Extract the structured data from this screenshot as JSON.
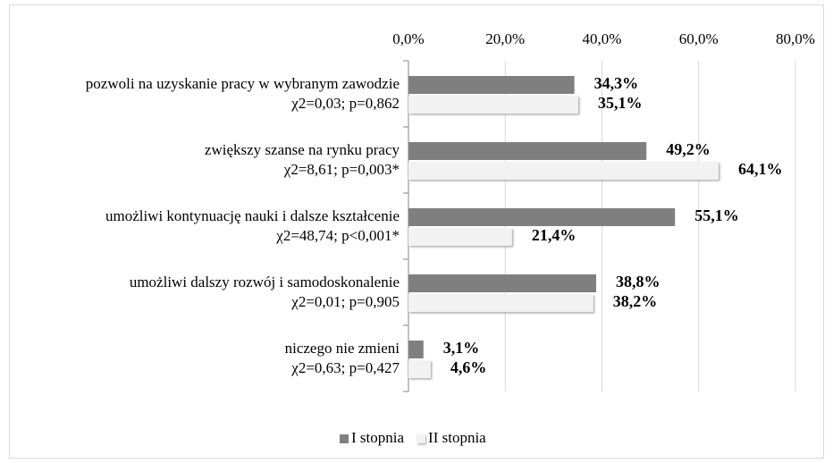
{
  "chart_data": {
    "type": "bar",
    "orientation": "horizontal",
    "categories": [
      "pozwoli na uzyskanie pracy w wybranym zawodzie",
      "zwiększy szanse na rynku pracy",
      "umożliwi kontynuację nauki i dalsze kształcenie",
      "umożliwi dalszy rozwój i samodoskonalenie",
      "niczego nie zmieni"
    ],
    "category_stats": [
      "χ2=0,03; p=0,862",
      "χ2=8,61; p=0,003*",
      "χ2=48,74; p<0,001*",
      "χ2=0,01; p=0,905",
      "χ2=0,63; p=0,427"
    ],
    "series": [
      {
        "name": "I stopnia",
        "color": "#7f7f7f",
        "values": [
          34.3,
          49.2,
          55.1,
          38.8,
          3.1
        ],
        "value_labels": [
          "34,3%",
          "49,2%",
          "55,1%",
          "38,8%",
          "3,1%"
        ]
      },
      {
        "name": "II stopnia",
        "color": "#f2f2f2",
        "values": [
          35.1,
          64.1,
          21.4,
          38.2,
          4.6
        ],
        "value_labels": [
          "35,1%",
          "64,1%",
          "21,4%",
          "38,2%",
          "4,6%"
        ]
      }
    ],
    "xlim": [
      0,
      80
    ],
    "xticks": [
      {
        "value": 0,
        "label": "0,0%"
      },
      {
        "value": 20,
        "label": "20,0%"
      },
      {
        "value": 40,
        "label": "40,0%"
      },
      {
        "value": 60,
        "label": "60,0%"
      },
      {
        "value": 80,
        "label": "80,0%"
      }
    ],
    "grid": true,
    "legend": "bottom"
  }
}
